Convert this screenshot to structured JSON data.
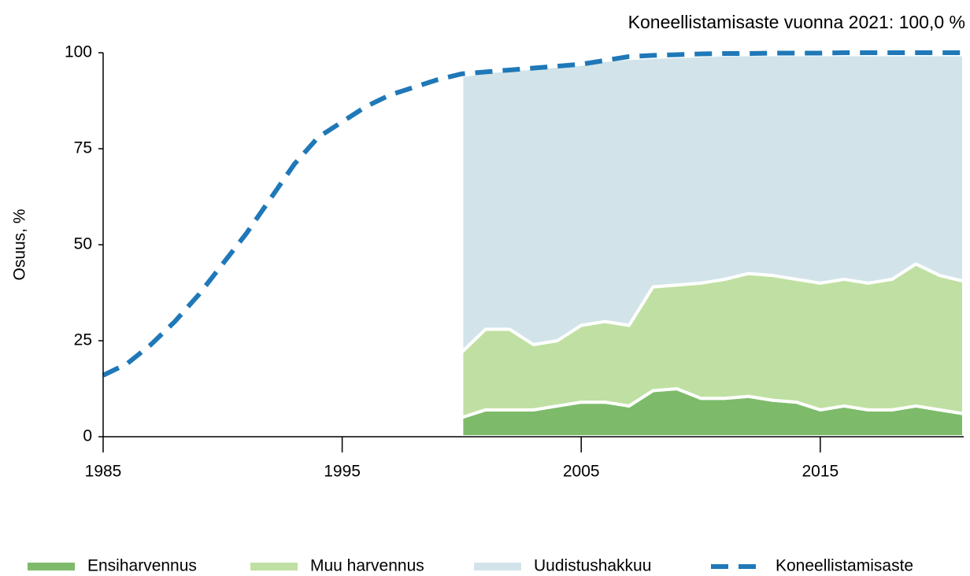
{
  "chart_data": {
    "type": "stacked_area_line",
    "title": "Koneellistamisaste vuonna 2021:  100,0 %",
    "y_label": "Osuus, %",
    "x": [
      1985,
      1986,
      1987,
      1988,
      1989,
      1990,
      1991,
      1992,
      1993,
      1994,
      1995,
      1996,
      1997,
      1998,
      1999,
      2000,
      2001,
      2002,
      2003,
      2004,
      2005,
      2006,
      2007,
      2008,
      2009,
      2010,
      2011,
      2012,
      2013,
      2014,
      2015,
      2016,
      2017,
      2018,
      2019,
      2020,
      2021
    ],
    "xlim": [
      1985,
      2021
    ],
    "xticks": [
      1985,
      1995,
      2005,
      2015
    ],
    "ylim": [
      0,
      100
    ],
    "yticks": [
      0,
      25,
      50,
      75,
      100
    ],
    "grid": false,
    "legend": "bottom",
    "series": [
      {
        "name": "Ensiharvennus",
        "color": "#7dbb6a",
        "kind": "area",
        "values": [
          null,
          null,
          null,
          null,
          null,
          null,
          null,
          null,
          null,
          null,
          null,
          null,
          null,
          null,
          null,
          5,
          7,
          7,
          7,
          8,
          9,
          9,
          8,
          12,
          12.5,
          10,
          10,
          10.5,
          9.5,
          9,
          7,
          8,
          7,
          7,
          8,
          7,
          6
        ]
      },
      {
        "name": "Muu harvennus",
        "color": "#bfe0a2",
        "kind": "area",
        "values": [
          null,
          null,
          null,
          null,
          null,
          null,
          null,
          null,
          null,
          null,
          null,
          null,
          null,
          null,
          null,
          17,
          21,
          21,
          17,
          17,
          20,
          21,
          21,
          27,
          27,
          30,
          31,
          32,
          32.5,
          32,
          33,
          33,
          33,
          34,
          37,
          35,
          34.5
        ]
      },
      {
        "name": "Uudistushakkuu",
        "color": "#d2e4ea",
        "kind": "area",
        "values": [
          null,
          null,
          null,
          null,
          null,
          null,
          null,
          null,
          null,
          null,
          null,
          null,
          null,
          null,
          null,
          72,
          67,
          67.5,
          72,
          71.5,
          68,
          68,
          69.5,
          59.8,
          59.5,
          59.2,
          58.5,
          57,
          57.5,
          58.5,
          59.5,
          58.5,
          59.5,
          58.5,
          54.5,
          57.5,
          59
        ]
      },
      {
        "name": "Koneellistamisaste",
        "color": "#1f78b8",
        "kind": "line",
        "values": [
          16,
          19,
          24,
          30,
          37,
          45,
          53,
          62,
          71,
          78,
          82,
          86,
          89,
          91,
          93,
          94.5,
          95,
          95.5,
          96,
          96.5,
          97,
          98,
          99,
          99.3,
          99.5,
          99.7,
          99.8,
          99.8,
          99.9,
          99.9,
          99.9,
          100,
          100,
          100,
          100,
          100,
          100
        ]
      }
    ]
  }
}
